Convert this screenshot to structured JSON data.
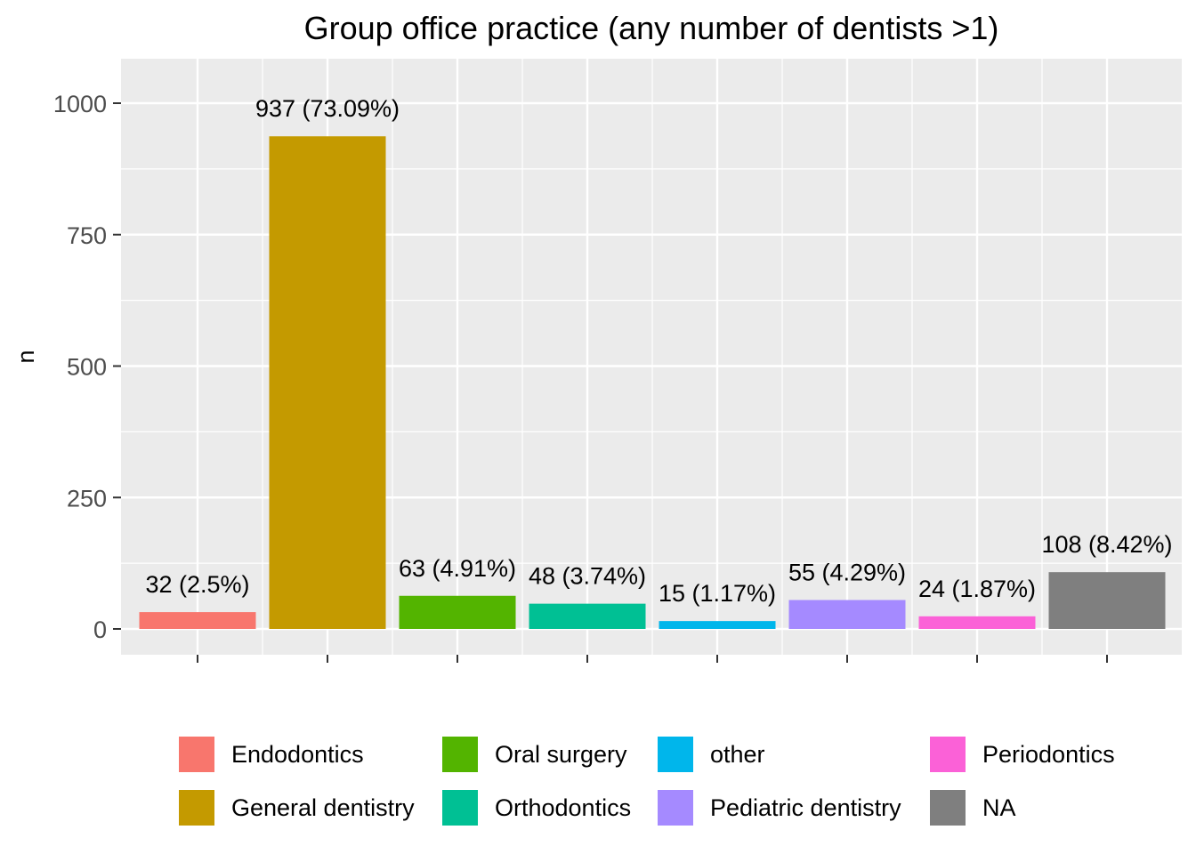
{
  "chart_data": {
    "type": "bar",
    "title": "Group office practice (any number of dentists >1)",
    "xlabel": "",
    "ylabel": "n",
    "ylim": [
      0,
      1080
    ],
    "yticks": [
      "0",
      "250",
      "500",
      "750",
      "1000"
    ],
    "ytick_values": [
      0,
      250,
      500,
      750,
      1000
    ],
    "grid": true,
    "legend_position": "bottom",
    "categories": [
      "Endodontics",
      "General dentistry",
      "Oral surgery",
      "Orthodontics",
      "other",
      "Pediatric dentistry",
      "Periodontics",
      "NA"
    ],
    "values": [
      32,
      937,
      63,
      48,
      15,
      55,
      24,
      108
    ],
    "data_labels": [
      "32 (2.5%)",
      "937 (73.09%)",
      "63 (4.91%)",
      "48 (3.74%)",
      "15 (1.17%)",
      "55 (4.29%)",
      "24 (1.87%)",
      "108 (8.42%)"
    ],
    "colors": [
      "#F8766D",
      "#C49A00",
      "#53B400",
      "#00C094",
      "#00B6EB",
      "#A58AFF",
      "#FB61D7",
      "#7F7F7F"
    ],
    "legend": [
      {
        "label": "Endodontics",
        "color": "#F8766D"
      },
      {
        "label": "General dentistry",
        "color": "#C49A00"
      },
      {
        "label": "Oral surgery",
        "color": "#53B400"
      },
      {
        "label": "Orthodontics",
        "color": "#00C094"
      },
      {
        "label": "other",
        "color": "#00B6EB"
      },
      {
        "label": "Pediatric dentistry",
        "color": "#A58AFF"
      },
      {
        "label": "Periodontics",
        "color": "#FB61D7"
      },
      {
        "label": "NA",
        "color": "#7F7F7F"
      }
    ],
    "panel_background": "#EBEBEB",
    "grid_color": "#FFFFFF"
  }
}
